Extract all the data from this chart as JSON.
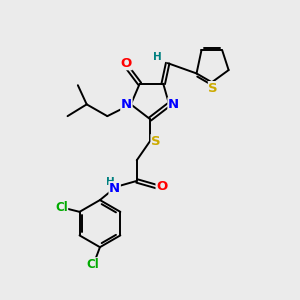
{
  "bg_color": "#ebebeb",
  "atom_colors": {
    "N": "#0000ff",
    "O": "#ff0000",
    "S": "#ccaa00",
    "Cl": "#00aa00",
    "H": "#008080",
    "C": "#000000"
  },
  "bond_width": 1.4,
  "font_size": 8.5,
  "fig_size": [
    3.0,
    3.0
  ],
  "dpi": 100
}
